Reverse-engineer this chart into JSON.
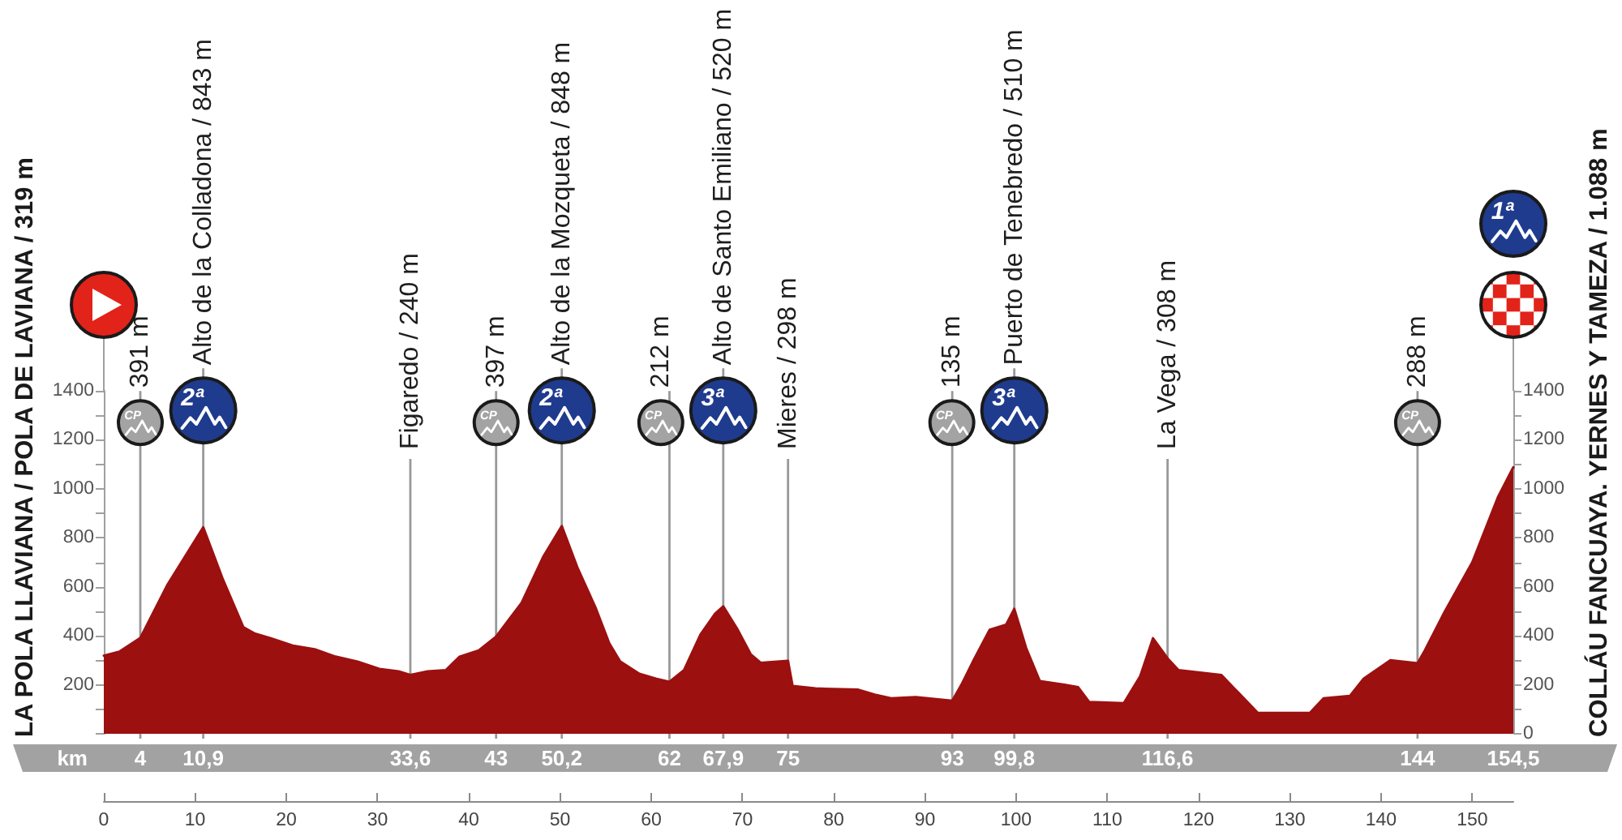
{
  "chart_data": {
    "type": "area",
    "ylabel": "LA POLA LLAVIANA / POLA DE LAVIANA / 319 m",
    "y2label": "COLLÁU FANCUAYA. YERNES Y TAMEZA / 1.088 m",
    "x2label": "km",
    "x": [
      0,
      1.7,
      4,
      7,
      10.9,
      13,
      15.3,
      16.5,
      18.3,
      20.7,
      23.1,
      25.4,
      27.8,
      30.2,
      32.3,
      33.6,
      35.5,
      37.5,
      39,
      41.1,
      43,
      45.8,
      48.2,
      50.2,
      51.9,
      53.9,
      55.4,
      56.6,
      58.7,
      60.5,
      62,
      63.6,
      65.4,
      67,
      67.9,
      69.4,
      70.9,
      72,
      75,
      75.5,
      78,
      82.7,
      84.5,
      86.3,
      89,
      93,
      94,
      95.4,
      97.1,
      98.9,
      99.8,
      101.1,
      102.6,
      105.3,
      106.8,
      108,
      111.8,
      113.6,
      115,
      116.6,
      117.8,
      122.5,
      124.3,
      126.5,
      132.2,
      133.7,
      136.6,
      138.1,
      141,
      144,
      144.8,
      147,
      150,
      152.8,
      154.5
    ],
    "values": [
      319,
      335,
      391,
      610,
      843,
      635,
      435,
      410,
      390,
      360,
      345,
      315,
      295,
      265,
      255,
      240,
      255,
      260,
      315,
      340,
      397,
      535,
      725,
      848,
      680,
      515,
      370,
      295,
      245,
      225,
      212,
      260,
      405,
      490,
      520,
      430,
      325,
      290,
      298,
      195,
      185,
      180,
      160,
      145,
      150,
      135,
      200,
      305,
      425,
      445,
      510,
      350,
      215,
      200,
      190,
      130,
      125,
      235,
      390,
      308,
      260,
      240,
      170,
      85,
      85,
      145,
      155,
      225,
      300,
      288,
      340,
      500,
      700,
      965,
      1088
    ],
    "color": "#9c1010",
    "xlim": [
      0,
      154.5
    ],
    "xticks": [
      0,
      10,
      20,
      30,
      40,
      50,
      60,
      70,
      80,
      90,
      100,
      110,
      120,
      130,
      140,
      150
    ],
    "x2lim": [
      0,
      154.5
    ],
    "x2ticks": [
      4,
      {
        "value": 10.9,
        "label": "10,9"
      },
      {
        "value": 33.6,
        "label": "33,6"
      },
      43,
      {
        "value": 50.2,
        "label": "50,2"
      },
      62,
      {
        "value": 67.9,
        "label": "67,9"
      },
      75,
      93,
      {
        "value": 99.8,
        "label": "99,8"
      },
      {
        "value": 116.6,
        "label": "116,6"
      },
      144,
      {
        "value": 154.5,
        "label": "154,5"
      }
    ],
    "ylim": [
      0,
      1400
    ],
    "yticks": [
      {
        "value": 0,
        "label": null
      },
      {
        "value": 100,
        "label": null
      },
      200,
      {
        "value": 300,
        "label": null
      },
      400,
      {
        "value": 500,
        "label": null
      },
      600,
      {
        "value": 700,
        "label": null
      },
      800,
      {
        "value": 900,
        "label": null
      },
      1000,
      {
        "value": 1100,
        "label": null
      },
      1200,
      {
        "value": 1300,
        "label": null
      },
      1400
    ],
    "y2lim": [
      0,
      1400
    ],
    "y2ticks": [
      0,
      {
        "value": 100,
        "label": null
      },
      200,
      {
        "value": 300,
        "label": null
      },
      400,
      {
        "value": 500,
        "label": null
      },
      600,
      {
        "value": 700,
        "label": null
      },
      800,
      {
        "value": 900,
        "label": null
      },
      1000,
      {
        "value": 1100,
        "label": null
      },
      1200,
      {
        "value": 1300,
        "label": null
      },
      1400
    ],
    "ref_lines": [
      {
        "axis": "x",
        "value": 4,
        "label": "391 m",
        "color": "#999999"
      },
      {
        "axis": "x",
        "value": 10.9,
        "label": "Alto de la Colladona / 843 m",
        "color": "#999999"
      },
      {
        "axis": "x",
        "value": 33.6,
        "label": "Figaredo / 240 m",
        "color": "#999999"
      },
      {
        "axis": "x",
        "value": 43,
        "label": "397 m",
        "color": "#999999"
      },
      {
        "axis": "x",
        "value": 50.2,
        "label": "Alto de la Mozqueta / 848 m",
        "color": "#999999"
      },
      {
        "axis": "x",
        "value": 62,
        "label": "212 m",
        "color": "#999999"
      },
      {
        "axis": "x",
        "value": 67.9,
        "label": "Alto de Santo Emiliano / 520 m",
        "color": "#999999"
      },
      {
        "axis": "x",
        "value": 75,
        "label": "Mieres / 298 m",
        "color": "#999999"
      },
      {
        "axis": "x",
        "value": 93,
        "label": "135 m",
        "color": "#999999"
      },
      {
        "axis": "x",
        "value": 99.8,
        "label": "Puerto de Tenebredo / 510 m",
        "color": "#999999"
      },
      {
        "axis": "x",
        "value": 116.6,
        "label": "La Vega / 308 m",
        "color": "#999999"
      },
      {
        "axis": "x",
        "value": 144,
        "label": "288 m",
        "color": "#999999"
      }
    ],
    "annotations": [
      {
        "text": "CP",
        "x": 4,
        "y": 1270
      },
      {
        "text": "2ª",
        "x": 10.9,
        "y": 1320
      },
      {
        "text": "CP",
        "x": 43,
        "y": 1270
      },
      {
        "text": "2ª",
        "x": 50.2,
        "y": 1320
      },
      {
        "text": "CP",
        "x": 62,
        "y": 1270
      },
      {
        "text": "3ª",
        "x": 67.9,
        "y": 1320
      },
      {
        "text": "CP",
        "x": 93,
        "y": 1270
      },
      {
        "text": "3ª",
        "x": 99.8,
        "y": 1320
      },
      {
        "text": "CP",
        "x": 144,
        "y": 1270
      },
      "1ª"
    ]
  }
}
